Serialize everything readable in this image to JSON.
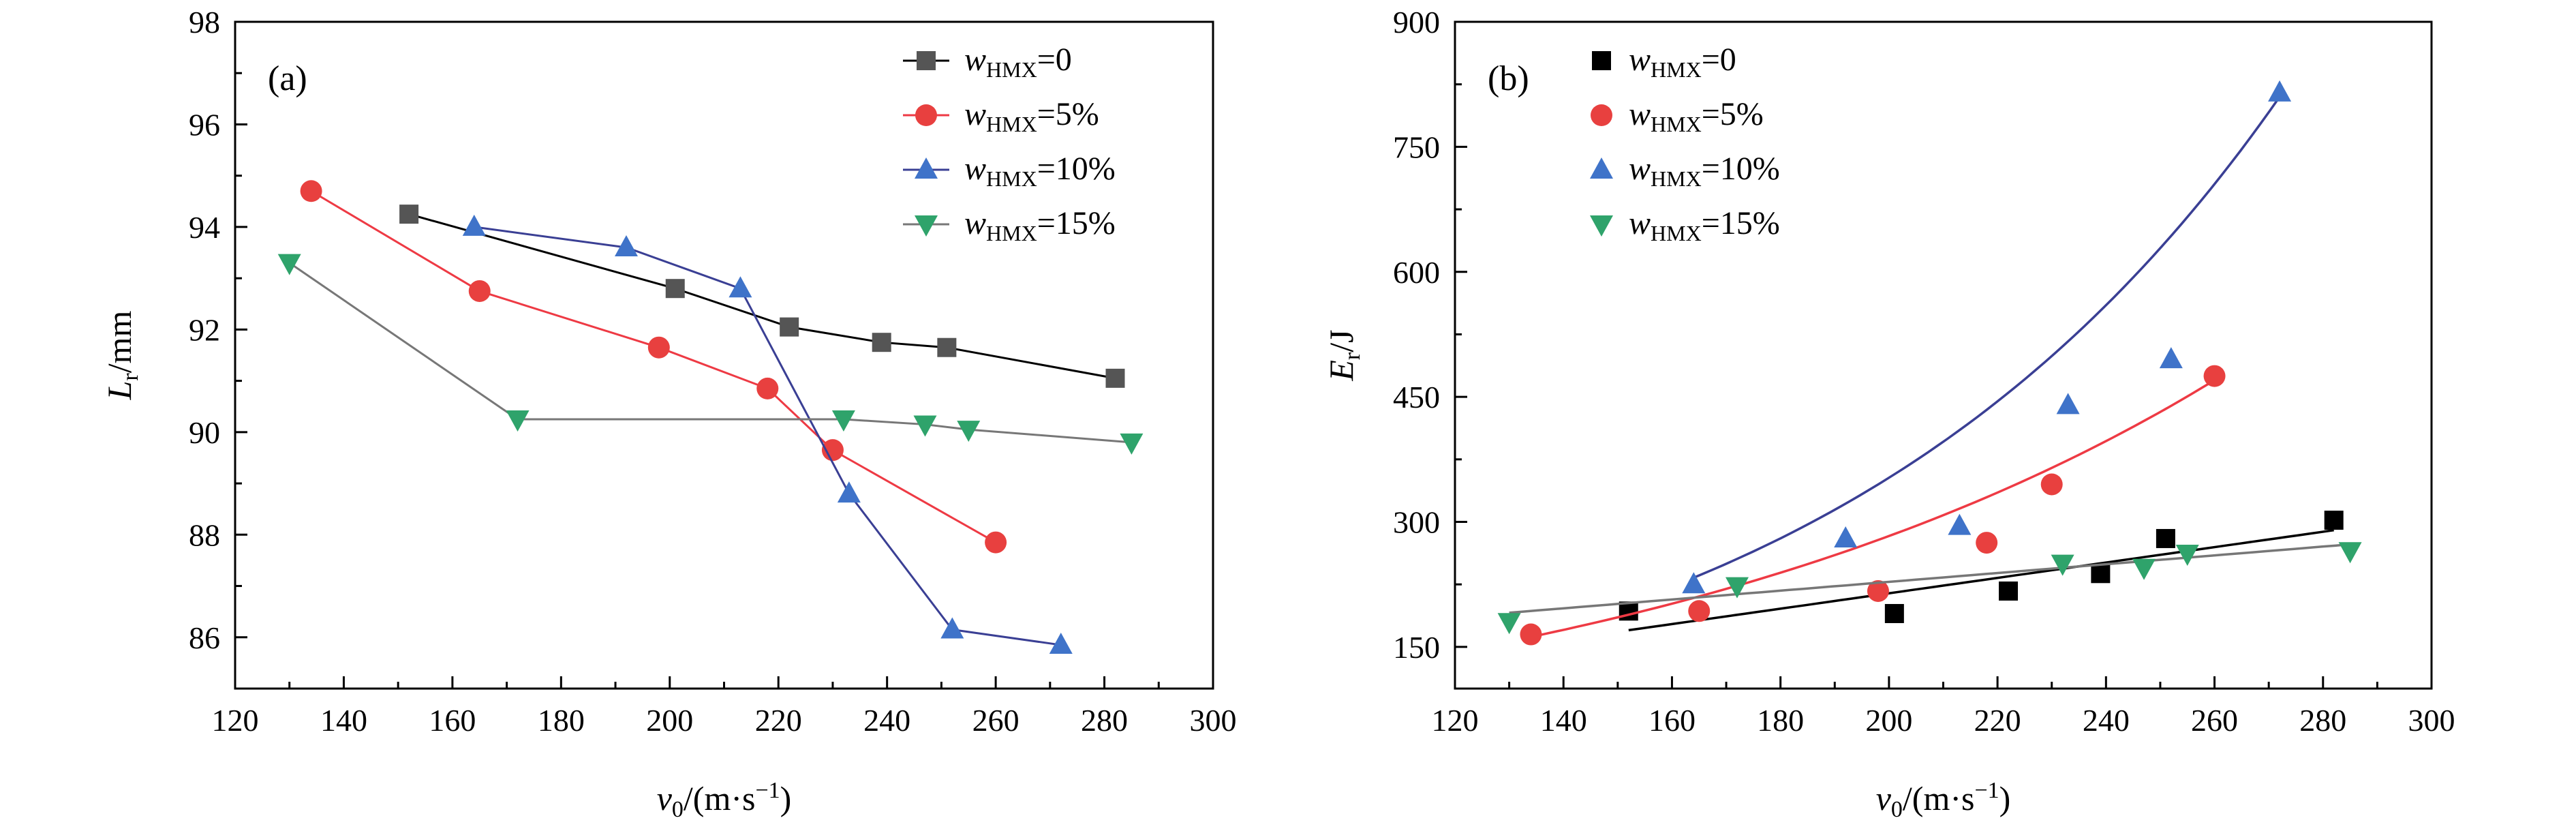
{
  "colors": {
    "axis": "#000000",
    "black_series": "#000000",
    "gray_series": "#555555",
    "red_series": "#e8403f",
    "red_line": "#ee3a44",
    "blue_series": "#3f73c9",
    "blue_line": "#3a3f94",
    "green_series": "#2fa36b",
    "green_line": "#777777"
  },
  "legend_labels": [
    {
      "var": "w",
      "sub": "HMX",
      "suffix": "=0"
    },
    {
      "var": "w",
      "sub": "HMX",
      "suffix": "=5%"
    },
    {
      "var": "w",
      "sub": "HMX",
      "suffix": "=10%"
    },
    {
      "var": "w",
      "sub": "HMX",
      "suffix": "=15%"
    }
  ],
  "chart_data": [
    {
      "type": "line",
      "panel_label": "(a)",
      "xlabel": {
        "var": "v",
        "sub": "0",
        "unit": "/(m·s",
        "sup": "−1",
        "close": ")"
      },
      "ylabel": {
        "var": "L",
        "sub": "r",
        "unit": "/mm"
      },
      "xlim": [
        120,
        300
      ],
      "ylim": [
        85,
        98
      ],
      "xticks": [
        120,
        140,
        160,
        180,
        200,
        220,
        240,
        260,
        280,
        300
      ],
      "yticks": [
        86,
        88,
        90,
        92,
        94,
        96,
        98
      ],
      "legend_position": "top-right",
      "series": [
        {
          "name": "wHMX=0",
          "marker": "square",
          "color_key": "gray_series",
          "line_key": "axis",
          "x": [
            152,
            201,
            222,
            239,
            251,
            282
          ],
          "y": [
            94.25,
            92.8,
            92.05,
            91.75,
            91.65,
            91.05
          ]
        },
        {
          "name": "wHMX=5%",
          "marker": "circle",
          "color_key": "red_series",
          "line_key": "red_line",
          "x": [
            134,
            165,
            198,
            218,
            230,
            260
          ],
          "y": [
            94.7,
            92.75,
            91.65,
            90.85,
            89.65,
            87.85
          ]
        },
        {
          "name": "wHMX=10%",
          "marker": "triangle-up",
          "color_key": "blue_series",
          "line_key": "blue_line",
          "x": [
            164,
            192,
            213,
            233,
            252,
            272
          ],
          "y": [
            94.0,
            93.6,
            92.8,
            88.8,
            86.15,
            85.85
          ]
        },
        {
          "name": "wHMX=15%",
          "marker": "triangle-down",
          "color_key": "green_series",
          "line_key": "green_line",
          "x": [
            130,
            172,
            232,
            247,
            255,
            285
          ],
          "y": [
            93.3,
            90.25,
            90.25,
            90.15,
            90.05,
            89.8
          ]
        }
      ]
    },
    {
      "type": "scatter",
      "panel_label": "(b)",
      "xlabel": {
        "var": "v",
        "sub": "0",
        "unit": "/(m·s",
        "sup": "−1",
        "close": ")"
      },
      "ylabel": {
        "var": "E",
        "sub": "r",
        "unit": "/J"
      },
      "xlim": [
        120,
        300
      ],
      "ylim": [
        100,
        900
      ],
      "xticks": [
        120,
        140,
        160,
        180,
        200,
        220,
        240,
        260,
        280,
        300
      ],
      "yticks": [
        150,
        300,
        450,
        600,
        750,
        900
      ],
      "legend_position": "top-left",
      "series": [
        {
          "name": "wHMX=0",
          "marker": "square",
          "color_key": "black_series",
          "x": [
            152,
            201,
            222,
            239,
            251,
            282
          ],
          "y": [
            193,
            190,
            217,
            238,
            280,
            302
          ],
          "fit": {
            "kind": "linear",
            "x_range": [
              152,
              282
            ],
            "y_range": [
              170,
              290
            ],
            "color_key": "black_series"
          }
        },
        {
          "name": "wHMX=5%",
          "marker": "circle",
          "color_key": "red_series",
          "x": [
            134,
            165,
            198,
            218,
            230,
            260
          ],
          "y": [
            165,
            193,
            217,
            275,
            345,
            475
          ],
          "fit": {
            "kind": "exp",
            "x_range": [
              134,
              260
            ],
            "y_range": [
              162,
              470
            ],
            "color_key": "red_line"
          }
        },
        {
          "name": "wHMX=10%",
          "marker": "triangle-up",
          "color_key": "blue_series",
          "x": [
            164,
            192,
            213,
            233,
            252,
            272
          ],
          "y": [
            225,
            280,
            295,
            440,
            495,
            815
          ],
          "fit": {
            "kind": "exp",
            "x_range": [
              164,
              272
            ],
            "y_range": [
              233,
              810
            ],
            "color_key": "blue_line"
          }
        },
        {
          "name": "wHMX=15%",
          "marker": "triangle-down",
          "color_key": "green_series",
          "x": [
            130,
            172,
            232,
            247,
            255,
            285
          ],
          "y": [
            180,
            223,
            250,
            245,
            262,
            265
          ],
          "fit": {
            "kind": "linear",
            "x_range": [
              130,
              285
            ],
            "y_range": [
              191,
              273
            ],
            "color_key": "green_line"
          }
        }
      ]
    }
  ]
}
